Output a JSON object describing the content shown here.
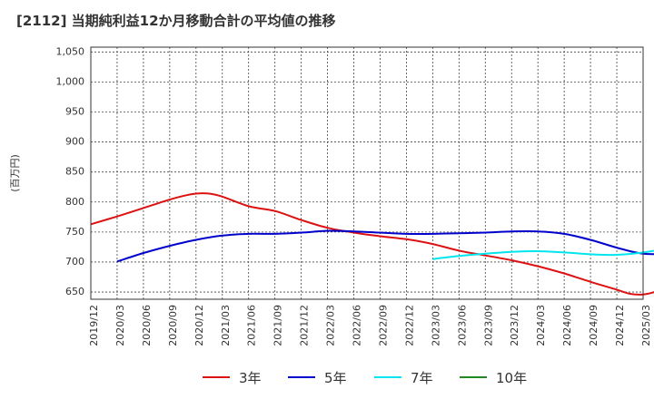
{
  "title": "[2112]  当期純利益12か月移動合計の平均値の推移",
  "chart_data": {
    "type": "line",
    "ylabel": "(百万円)",
    "ylim": [
      638,
      1058
    ],
    "yticks": [
      650,
      700,
      750,
      800,
      850,
      900,
      950,
      1000,
      1050
    ],
    "ytick_labels": [
      "650",
      "700",
      "750",
      "800",
      "850",
      "900",
      "950",
      "1,000",
      "1,050"
    ],
    "xticks": [
      "2019/12",
      "2020/03",
      "2020/06",
      "2020/09",
      "2020/12",
      "2021/03",
      "2021/06",
      "2021/09",
      "2021/12",
      "2022/03",
      "2022/06",
      "2022/09",
      "2022/12",
      "2023/03",
      "2023/06",
      "2023/09",
      "2023/12",
      "2024/03",
      "2024/06",
      "2024/09",
      "2024/12",
      "2025/03"
    ],
    "grid": true,
    "legend_position": "bottom",
    "series": [
      {
        "name": "3年",
        "color": "#dd1111",
        "values": [
          [
            0,
            763
          ],
          [
            1,
            776
          ],
          [
            2,
            790
          ],
          [
            3,
            804
          ],
          [
            3.5,
            810
          ],
          [
            4,
            814
          ],
          [
            4.5,
            814
          ],
          [
            5,
            809
          ],
          [
            6,
            793
          ],
          [
            7,
            785
          ],
          [
            8,
            770
          ],
          [
            9,
            757
          ],
          [
            10,
            749
          ],
          [
            11,
            743
          ],
          [
            12,
            738
          ],
          [
            13,
            730
          ],
          [
            14,
            719
          ],
          [
            15,
            711
          ],
          [
            16,
            703
          ],
          [
            17,
            693
          ],
          [
            18,
            681
          ],
          [
            19,
            667
          ],
          [
            20,
            654
          ],
          [
            20.5,
            647
          ],
          [
            21,
            646
          ],
          [
            21.5,
            651
          ],
          [
            22,
            661
          ],
          [
            23,
            682
          ],
          [
            24,
            708
          ],
          [
            25,
            742
          ],
          [
            26,
            785
          ],
          [
            27,
            826
          ],
          [
            28,
            862
          ],
          [
            29,
            896
          ],
          [
            30,
            940
          ],
          [
            31,
            990
          ],
          [
            32,
            1042
          ]
        ]
      },
      {
        "name": "5年",
        "color": "#0000cc",
        "values": [
          [
            1,
            701
          ],
          [
            2,
            715
          ],
          [
            3,
            727
          ],
          [
            4,
            737
          ],
          [
            5,
            744
          ],
          [
            6,
            747
          ],
          [
            7,
            747
          ],
          [
            8,
            749
          ],
          [
            9,
            752
          ],
          [
            10,
            751
          ],
          [
            11,
            749
          ],
          [
            12,
            747
          ],
          [
            13,
            747
          ],
          [
            14,
            748
          ],
          [
            15,
            749
          ],
          [
            16,
            751
          ],
          [
            17,
            751
          ],
          [
            18,
            747
          ],
          [
            19,
            737
          ],
          [
            20,
            724
          ],
          [
            21,
            714
          ],
          [
            22,
            715
          ],
          [
            23,
            725
          ],
          [
            24,
            740
          ],
          [
            25,
            760
          ],
          [
            26,
            785
          ],
          [
            27,
            811
          ],
          [
            28,
            840
          ],
          [
            29,
            872
          ],
          [
            30,
            915
          ]
        ]
      },
      {
        "name": "7年",
        "color": "#00e5ee",
        "values": [
          [
            13,
            705
          ],
          [
            14,
            710
          ],
          [
            15,
            714
          ],
          [
            16,
            717
          ],
          [
            17,
            718
          ],
          [
            18,
            716
          ],
          [
            19,
            713
          ],
          [
            20,
            712
          ],
          [
            21,
            716
          ],
          [
            22,
            724
          ],
          [
            23,
            737
          ],
          [
            24,
            753
          ],
          [
            25,
            775
          ],
          [
            26,
            796
          ],
          [
            27,
            818
          ],
          [
            28,
            840
          ],
          [
            29,
            865
          ],
          [
            30,
            893
          ]
        ]
      },
      {
        "name": "10年",
        "color": "#228822",
        "values": []
      }
    ]
  }
}
